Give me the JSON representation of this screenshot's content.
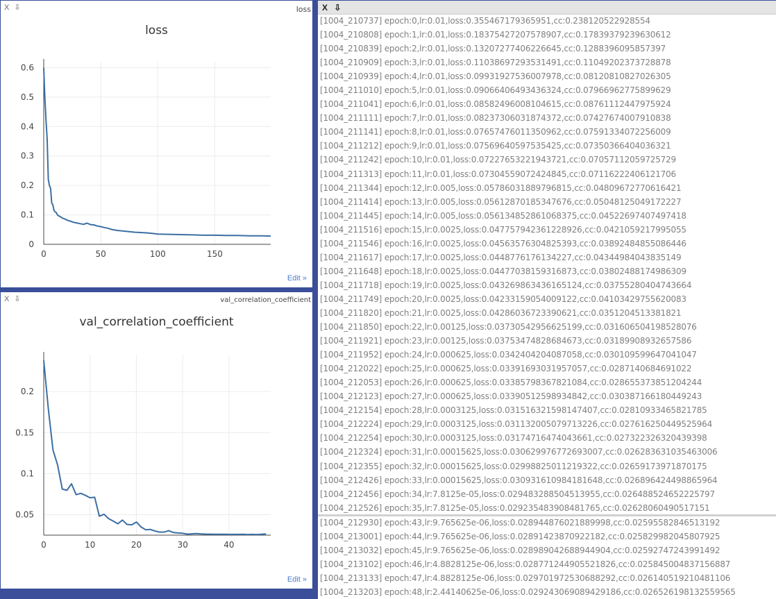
{
  "panes": {
    "loss": {
      "controls": "X ⇩",
      "tag": "loss",
      "edit_label": "Edit »"
    },
    "val": {
      "controls": "X ⇩",
      "tag": "val_correlation_coefficient",
      "edit_label": "Edit »"
    },
    "log": {
      "controls": "X ⇩"
    }
  },
  "chart_data": [
    {
      "type": "line",
      "title": "loss",
      "xlim": [
        0,
        199
      ],
      "ylim": [
        0,
        0.62
      ],
      "xticks": [
        0,
        50,
        100,
        150
      ],
      "yticks": [
        0,
        0.1,
        0.2,
        0.3,
        0.4,
        0.5,
        0.6
      ],
      "grid": true,
      "series": [
        {
          "color": "#3b6fa4",
          "x": [
            0,
            1,
            2,
            3,
            4,
            5,
            6,
            7,
            8,
            9,
            10,
            11,
            12,
            13,
            14,
            15,
            16,
            17,
            18,
            19,
            20,
            22,
            24,
            26,
            28,
            30,
            32,
            35,
            38,
            41,
            44,
            47,
            50,
            53,
            56,
            60,
            65,
            70,
            75,
            80,
            85,
            90,
            95,
            100,
            110,
            120,
            130,
            140,
            150,
            160,
            170,
            180,
            190,
            199
          ],
          "y": [
            0.6,
            0.5,
            0.42,
            0.36,
            0.22,
            0.2,
            0.19,
            0.14,
            0.135,
            0.115,
            0.11,
            0.108,
            0.1,
            0.097,
            0.095,
            0.093,
            0.09,
            0.088,
            0.087,
            0.085,
            0.083,
            0.08,
            0.078,
            0.075,
            0.073,
            0.072,
            0.07,
            0.068,
            0.072,
            0.067,
            0.066,
            0.062,
            0.06,
            0.057,
            0.055,
            0.05,
            0.047,
            0.045,
            0.043,
            0.041,
            0.04,
            0.039,
            0.037,
            0.035,
            0.034,
            0.033,
            0.032,
            0.031,
            0.031,
            0.03,
            0.03,
            0.029,
            0.029,
            0.028
          ]
        }
      ]
    },
    {
      "type": "line",
      "title": "val_correlation_coefficient",
      "xlim": [
        0,
        49
      ],
      "ylim": [
        0.025,
        0.245
      ],
      "xticks": [
        0,
        10,
        20,
        30,
        40
      ],
      "yticks": [
        0.05,
        0.1,
        0.15,
        0.2
      ],
      "grid": true,
      "series": [
        {
          "color": "#3b6fa4",
          "x": [
            0,
            1,
            2,
            3,
            4,
            5,
            6,
            7,
            8,
            9,
            10,
            11,
            12,
            13,
            14,
            15,
            16,
            17,
            18,
            19,
            20,
            21,
            22,
            23,
            24,
            25,
            26,
            27,
            28,
            29,
            30,
            31,
            32,
            33,
            34,
            35,
            36,
            37,
            38,
            39,
            40,
            41,
            42,
            43,
            44,
            45,
            46,
            47,
            48
          ],
          "y": [
            0.2381,
            0.1784,
            0.1289,
            0.1105,
            0.0812,
            0.0797,
            0.0876,
            0.0743,
            0.0759,
            0.0735,
            0.0706,
            0.0712,
            0.0481,
            0.0505,
            0.0452,
            0.0421,
            0.0389,
            0.0434,
            0.038,
            0.0376,
            0.041,
            0.0351,
            0.0316,
            0.0319,
            0.0301,
            0.0287,
            0.0287,
            0.0304,
            0.0281,
            0.0276,
            0.0273,
            0.0263,
            0.0266,
            0.0269,
            0.0265,
            0.0263,
            0.0262,
            0.0261,
            0.026,
            0.026,
            0.0259,
            0.0259,
            0.0259,
            0.026,
            0.0258,
            0.0259,
            0.0258,
            0.0261,
            0.0265
          ]
        }
      ]
    }
  ],
  "log_upper": [
    "[1004_210737] epoch:0,lr:0.01,loss:0.355467179365951,cc:0.238120522928554",
    "[1004_210808] epoch:1,lr:0.01,loss:0.18375427207578907,cc:0.17839379239630612",
    "[1004_210839] epoch:2,lr:0.01,loss:0.13207277406226645,cc:0.1288396095857397",
    "[1004_210909] epoch:3,lr:0.01,loss:0.11038697293531491,cc:0.11049202373728878",
    "[1004_210939] epoch:4,lr:0.01,loss:0.09931927536007978,cc:0.08120810827026305",
    "[1004_211010] epoch:5,lr:0.01,loss:0.09066406493436324,cc:0.07966962775899629",
    "[1004_211041] epoch:6,lr:0.01,loss:0.08582496008104615,cc:0.08761112447975924",
    "[1004_211111] epoch:7,lr:0.01,loss:0.08237306031874372,cc:0.07427674007910838",
    "[1004_211141] epoch:8,lr:0.01,loss:0.07657476011350962,cc:0.07591334072256009",
    "[1004_211212] epoch:9,lr:0.01,loss:0.07569640597535425,cc:0.07350366404036321",
    "[1004_211242] epoch:10,lr:0.01,loss:0.07227653221943721,cc:0.07057112059725729",
    "[1004_211313] epoch:11,lr:0.01,loss:0.07304559072424845,cc:0.07116222406121706",
    "[1004_211344] epoch:12,lr:0.005,loss:0.05786031889796815,cc:0.04809672770616421",
    "[1004_211414] epoch:13,lr:0.005,loss:0.05612870185347676,cc:0.05048125049172227",
    "[1004_211445] epoch:14,lr:0.005,loss:0.056134852861068375,cc:0.04522697407497418",
    "[1004_211516] epoch:15,lr:0.0025,loss:0.047757942361228926,cc:0.0421059217995055",
    "[1004_211546] epoch:16,lr:0.0025,loss:0.04563576304825393,cc:0.03892484855086446",
    "[1004_211617] epoch:17,lr:0.0025,loss:0.0448776176134227,cc:0.04344984043835149",
    "[1004_211648] epoch:18,lr:0.0025,loss:0.04477038159316873,cc:0.03802488174986309",
    "[1004_211718] epoch:19,lr:0.0025,loss:0.043269863436165124,cc:0.03755280404743664",
    "[1004_211749] epoch:20,lr:0.0025,loss:0.04233159054009122,cc:0.04103429755620083",
    "[1004_211820] epoch:21,lr:0.0025,loss:0.04286036723390621,cc:0.0351204513381821",
    "[1004_211850] epoch:22,lr:0.00125,loss:0.03730542956625199,cc:0.031606504198528076",
    "[1004_211921] epoch:23,lr:0.00125,loss:0.03753474828684673,cc:0.03189908932657586",
    "[1004_211952] epoch:24,lr:0.000625,loss:0.0342404204087058,cc:0.030109599647041047",
    "[1004_212022] epoch:25,lr:0.000625,loss:0.03391693031957057,cc:0.0287140684691022",
    "[1004_212053] epoch:26,lr:0.000625,loss:0.03385798367821084,cc:0.028655373851204244",
    "[1004_212123] epoch:27,lr:0.000625,loss:0.03390512598934842,cc:0.030387166180449243",
    "[1004_212154] epoch:28,lr:0.0003125,loss:0.031516321598147407,cc:0.02810933465821785",
    "[1004_212224] epoch:29,lr:0.0003125,loss:0.031132005079713226,cc:0.027616250449525964",
    "[1004_212254] epoch:30,lr:0.0003125,loss:0.03174716474043661,cc:0.027322326320439398",
    "[1004_212324] epoch:31,lr:0.00015625,loss:0.030629976772693007,cc:0.026283631035463006",
    "[1004_212355] epoch:32,lr:0.00015625,loss:0.02998825011219322,cc:0.02659173971870175",
    "[1004_212426] epoch:33,lr:0.00015625,loss:0.030931610984181648,cc:0.026896424498865964",
    "[1004_212456] epoch:34,lr:7.8125e-05,loss:0.029483288504513955,cc:0.026488524652225797",
    "[1004_212526] epoch:35,lr:7.8125e-05,loss:0.02923548390848176​5,cc:0.02628060490517151"
  ],
  "log_lower": [
    "[1004_212930] epoch:43,lr:9.765625e-06,loss:0.028944876021889998,cc:0.025955828465131​92",
    "[1004_213001] epoch:44,lr:9.765625e-06,loss:0.02891423870922182,cc:0.025829982045807925",
    "[1004_213032] epoch:45,lr:9.765625e-06,loss:0.028989042688944904,cc:0.025927472439914​92",
    "[1004_213102] epoch:46,lr:4.8828125e-06,loss:0.028771244905521826,cc:0.025845004837156887",
    "[1004_213133] epoch:47,lr:4.8828125e-06,loss:0.029701972530688292,cc:0.026140519210481106",
    "[1004_213203] epoch:48,lr:2.44140625e-06,loss:0.029243069089429186,cc:0.026526198132559565"
  ]
}
